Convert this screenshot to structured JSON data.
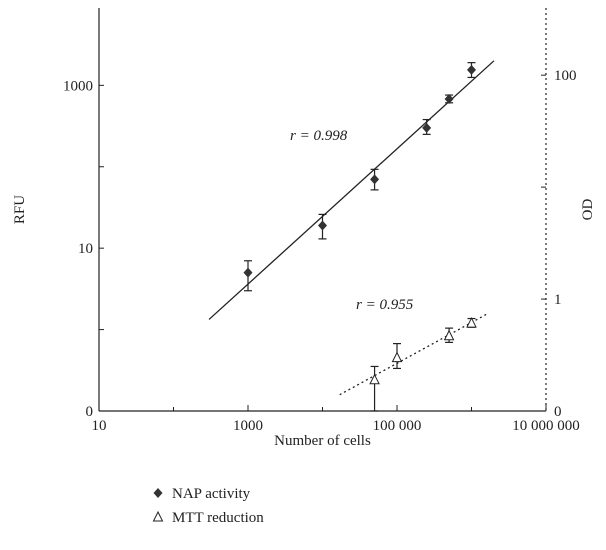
{
  "chart_data": {
    "type": "scatter",
    "xlabel": "Number of cells",
    "ylabel_left": "RFU",
    "ylabel_right": "OD",
    "x_scale": "log",
    "x_ticks": [
      {
        "value": 10,
        "label": "10"
      },
      {
        "value": 1000,
        "label": "1000"
      },
      {
        "value": 100000,
        "label": "100 000"
      },
      {
        "value": 10000000,
        "label": "10 000 000"
      }
    ],
    "y_left_ticks": [
      {
        "value": 0.1,
        "label": "0"
      },
      {
        "value": 10,
        "label": "10"
      },
      {
        "value": 1000,
        "label": "1000"
      }
    ],
    "y_right_ticks": [
      {
        "value": 0.1,
        "label": "0"
      },
      {
        "value": 1,
        "label": "1"
      },
      {
        "value": 100,
        "label": "100"
      }
    ],
    "series": [
      {
        "name": "NAP activity",
        "marker": "filled-diamond",
        "axis": "left",
        "points": [
          {
            "x": 1000,
            "y": 5,
            "err_low": 3,
            "err_high": 7
          },
          {
            "x": 10000,
            "y": 19,
            "err_low": 13,
            "err_high": 26
          },
          {
            "x": 50000,
            "y": 70,
            "err_low": 52,
            "err_high": 93
          },
          {
            "x": 250000,
            "y": 300,
            "err_low": 250,
            "err_high": 380
          },
          {
            "x": 500000,
            "y": 680,
            "err_low": 610,
            "err_high": 760
          },
          {
            "x": 1000000,
            "y": 1550,
            "err_low": 1250,
            "err_high": 1900
          }
        ],
        "fit": {
          "r_label": "r = 0.998",
          "x_start": 300,
          "x_end": 2000000
        }
      },
      {
        "name": "MTT reduction",
        "marker": "open-triangle",
        "axis": "right",
        "points": [
          {
            "x": 50000,
            "y": 0.19,
            "err_low": 0.1,
            "err_high": 0.25
          },
          {
            "x": 100000,
            "y": 0.3,
            "err_low": 0.24,
            "err_high": 0.4
          },
          {
            "x": 500000,
            "y": 0.47,
            "err_low": 0.41,
            "err_high": 0.55
          },
          {
            "x": 1000000,
            "y": 0.61,
            "err_low": 0.56,
            "err_high": 0.67
          }
        ],
        "fit": {
          "r_label": "r = 0.955",
          "x_start": 17000,
          "x_end": 1700000
        }
      }
    ]
  }
}
